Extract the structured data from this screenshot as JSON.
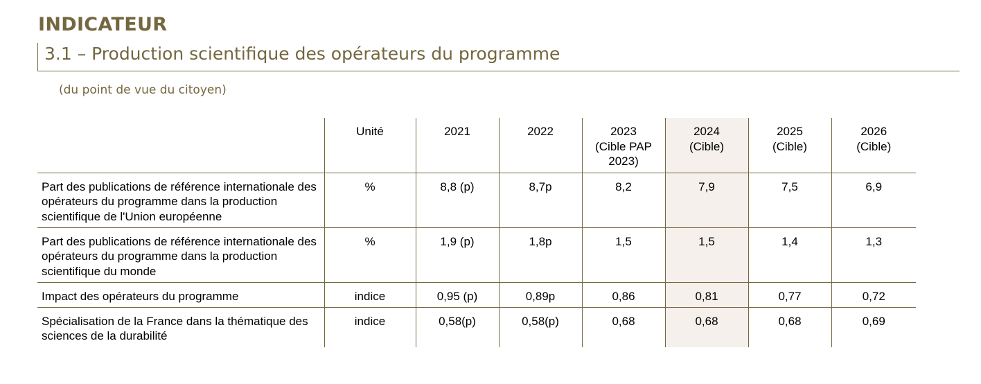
{
  "header": {
    "kicker": "INDICATEUR",
    "title": "3.1 – Production scientifique des opérateurs du programme",
    "subtitle": "(du point de vue du citoyen)"
  },
  "colors": {
    "brand": "#74673f",
    "highlight_column": "#f5f0eb"
  },
  "table": {
    "headers": [
      "",
      "Unité",
      "2021",
      "2022",
      "2023\n(Cible PAP\n2023)",
      "2024\n(Cible)",
      "2025\n(Cible)",
      "2026\n(Cible)"
    ],
    "rows": [
      {
        "label": "Part des publications de référence internationale des opérateurs du programme dans la production scientifique de l'Union européenne",
        "unit": "%",
        "y2021": "8,8 (p)",
        "y2022": "8,7p",
        "y2023": "8,2",
        "y2024": "7,9",
        "y2025": "7,5",
        "y2026": "6,9"
      },
      {
        "label": "Part des publications de référence internationale des opérateurs du programme dans la production scientifique du monde",
        "unit": "%",
        "y2021": "1,9 (p)",
        "y2022": "1,8p",
        "y2023": "1,5",
        "y2024": "1,5",
        "y2025": "1,4",
        "y2026": "1,3"
      },
      {
        "label": "Impact des opérateurs du programme",
        "unit": "indice",
        "y2021": "0,95 (p)",
        "y2022": "0,89p",
        "y2023": "0,86",
        "y2024": "0,81",
        "y2025": "0,77",
        "y2026": "0,72"
      },
      {
        "label": "Spécialisation de la France dans la thématique des sciences de la durabilité",
        "unit": "indice",
        "y2021": "0,58(p)",
        "y2022": "0,58(p)",
        "y2023": "0,68",
        "y2024": "0,68",
        "y2025": "0,68",
        "y2026": "0,69"
      }
    ]
  }
}
